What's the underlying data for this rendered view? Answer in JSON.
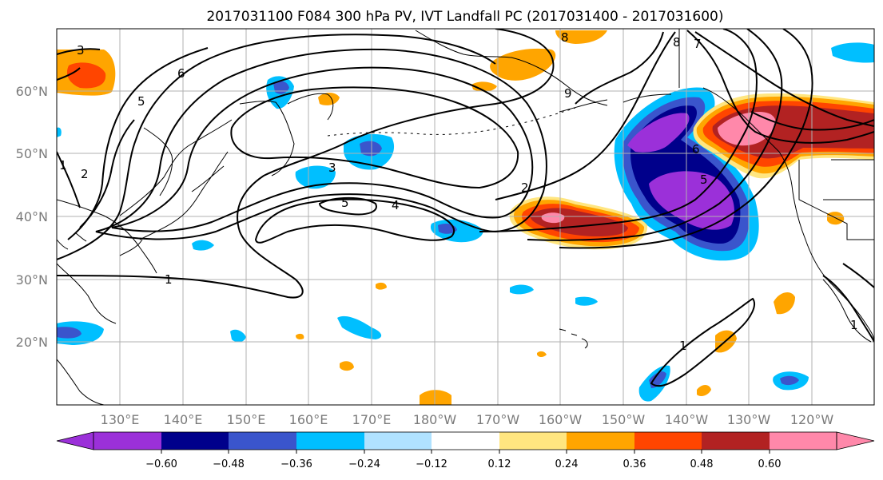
{
  "title": "2017031100 F084 300 hPa PV, IVT Landfall PC (2017031400 - 2017031600)",
  "axes": {
    "lat_labels": [
      "60°N",
      "50°N",
      "40°N",
      "30°N",
      "20°N"
    ],
    "lon_labels": [
      "130°E",
      "140°E",
      "150°E",
      "160°E",
      "170°E",
      "180°W",
      "170°W",
      "160°W",
      "150°W",
      "140°W",
      "130°W",
      "120°W"
    ]
  },
  "colorbar": {
    "tick_labels": [
      "−0.60",
      "−0.48",
      "−0.36",
      "−0.24",
      "−0.12",
      "0.12",
      "0.24",
      "0.36",
      "0.48",
      "0.60"
    ],
    "colors": [
      "#9b30d9",
      "#00008b",
      "#3a55cc",
      "#00bfff",
      "#b0e2ff",
      "#ffffff",
      "#ffe680",
      "#ffa500",
      "#ff4500",
      "#b22222",
      "#ff88aa"
    ]
  },
  "contour_labels": [
    "3",
    "6",
    "5",
    "1",
    "2",
    "3",
    "5",
    "4",
    "1",
    "2",
    "8",
    "9",
    "8",
    "7",
    "6",
    "5",
    "1",
    "1"
  ],
  "shading_colors": {
    "purple": "#9b30d9",
    "navy": "#00008b",
    "blue": "#3a55cc",
    "cyan": "#00bfff",
    "lightblue": "#b0e2ff",
    "yellow": "#ffe680",
    "orange": "#ffa500",
    "redorange": "#ff4500",
    "darkred": "#b22222",
    "pink": "#ff88aa"
  }
}
